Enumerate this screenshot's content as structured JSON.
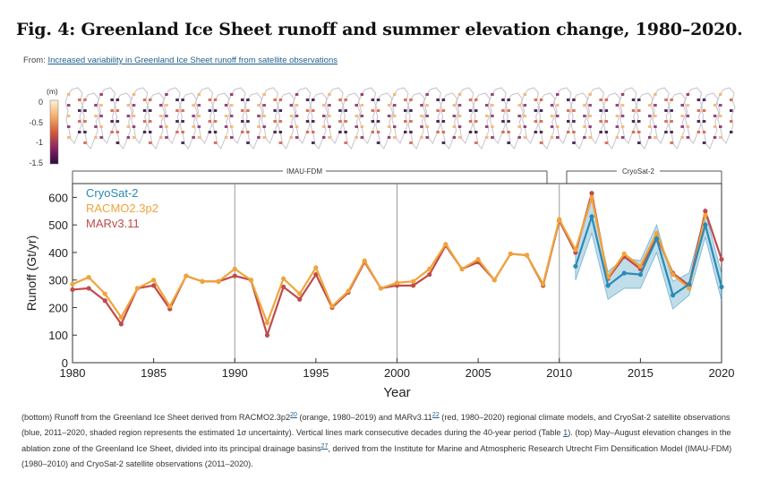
{
  "figure": {
    "title": "Fig. 4: Greenland Ice Sheet runoff and summer elevation change, 1980–2020.",
    "from_prefix": "From:",
    "from_link": "Increased variability in Greenland Ice Sheet runoff from satellite observations"
  },
  "colorbar": {
    "unit": "(m)",
    "ticks": [
      "0",
      "-0.5",
      "-1",
      "-1.5"
    ],
    "colors": [
      "#fdf1d6",
      "#f3b06a",
      "#d45a3c",
      "#8a2464",
      "#2b0a3d"
    ]
  },
  "period_labels": [
    "IMAU-FDM",
    "CryoSat-2"
  ],
  "caption": {
    "p1": "(bottom) Runoff from the Greenland Ice Sheet derived from RACMO2.3p2",
    "r1": "20",
    "p2": " (orange, 1980–2019) and MARv3.11",
    "r2": "22",
    "p3": " (red, 1980–2020) regional climate models, and CryoSat-2 satellite observations (blue, 2011–2020, shaded region represents the estimated 1σ uncertainty). Vertical lines mark consecutive decades during the 40-year period (Table ",
    "t1": "1",
    "p4": "). (top) May–August elevation changes in the ablation zone of the Greenland Ice Sheet, divided into its principal drainage basins",
    "r3": "27",
    "p5": ", derived from the Institute for Marine and Atmospheric Research Utrecht Firn Densification Model (IMAU-FDM) (1980–2010) and CryoSat-2 satellite observations (2011–2020)."
  },
  "chart_data": {
    "type": "line",
    "title": "",
    "xlabel": "Year",
    "ylabel": "Runoff (Gt/yr)",
    "xlim": [
      1980,
      2020
    ],
    "ylim": [
      0,
      650
    ],
    "xticks": [
      1980,
      1985,
      1990,
      1995,
      2000,
      2005,
      2010,
      2015,
      2020
    ],
    "yticks": [
      0,
      100,
      200,
      300,
      400,
      500,
      600
    ],
    "decade_lines": [
      1990,
      2000,
      2010
    ],
    "series": [
      {
        "name": "CryoSat-2",
        "color": "#2a8ab5",
        "x": [
          2011,
          2012,
          2013,
          2014,
          2015,
          2016,
          2017,
          2018,
          2019,
          2020
        ],
        "values": [
          350,
          530,
          280,
          325,
          320,
          450,
          245,
          285,
          500,
          275
        ],
        "lower": [
          300,
          470,
          230,
          270,
          270,
          400,
          195,
          245,
          455,
          225
        ],
        "upper": [
          400,
          590,
          330,
          380,
          370,
          500,
          295,
          325,
          545,
          325
        ]
      },
      {
        "name": "RACMO2.3p2",
        "color": "#f0a43a",
        "x": [
          1980,
          1981,
          1982,
          1983,
          1984,
          1985,
          1986,
          1987,
          1988,
          1989,
          1990,
          1991,
          1992,
          1993,
          1994,
          1995,
          1996,
          1997,
          1998,
          1999,
          2000,
          2001,
          2002,
          2003,
          2004,
          2005,
          2006,
          2007,
          2008,
          2009,
          2010,
          2011,
          2012,
          2013,
          2014,
          2015,
          2016,
          2017,
          2018,
          2019
        ],
        "values": [
          285,
          310,
          250,
          165,
          270,
          300,
          205,
          315,
          295,
          295,
          340,
          300,
          145,
          305,
          250,
          345,
          205,
          260,
          370,
          270,
          290,
          295,
          340,
          430,
          340,
          375,
          300,
          395,
          390,
          285,
          520,
          410,
          600,
          310,
          395,
          350,
          470,
          320,
          270,
          535
        ]
      },
      {
        "name": "MARv3.11",
        "color": "#c24a4a",
        "x": [
          1980,
          1981,
          1982,
          1983,
          1984,
          1985,
          1986,
          1987,
          1988,
          1989,
          1990,
          1991,
          1992,
          1993,
          1994,
          1995,
          1996,
          1997,
          1998,
          1999,
          2000,
          2001,
          2002,
          2003,
          2004,
          2005,
          2006,
          2007,
          2008,
          2009,
          2010,
          2011,
          2012,
          2013,
          2014,
          2015,
          2016,
          2017,
          2018,
          2019,
          2020
        ],
        "values": [
          265,
          270,
          225,
          140,
          270,
          280,
          195,
          315,
          295,
          295,
          315,
          300,
          100,
          275,
          230,
          320,
          200,
          255,
          365,
          270,
          280,
          280,
          320,
          425,
          340,
          365,
          300,
          395,
          390,
          280,
          515,
          400,
          615,
          305,
          385,
          340,
          460,
          325,
          280,
          550,
          375
        ]
      }
    ],
    "legend": [
      "CryoSat-2",
      "RACMO2.3p2",
      "MARv3.11"
    ],
    "legend_position": "top-left"
  }
}
